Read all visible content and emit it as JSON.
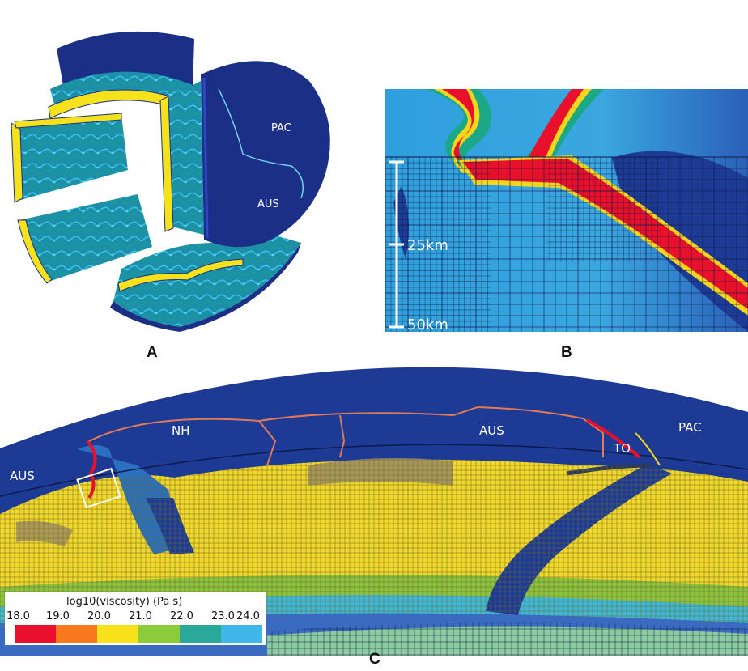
{
  "panels": {
    "a": {
      "letter": "A",
      "plate_labels": [
        "PAC",
        "AUS"
      ]
    },
    "b": {
      "letter": "B",
      "scale_ticks": [
        "25km",
        "50km"
      ]
    },
    "c": {
      "letter": "C",
      "plate_labels": [
        "AUS",
        "NH",
        "AUS",
        "TO",
        "PAC"
      ]
    }
  },
  "colorbar": {
    "title": "log10(viscosity) (Pa s)",
    "ticks": [
      "18.0",
      "19.0",
      "20.0",
      "21.0",
      "22.0",
      "23.0",
      "24.0"
    ],
    "colors": [
      "#e8102a",
      "#f7791c",
      "#f9e21a",
      "#8ccb3a",
      "#2aa89a",
      "#3fb7e8",
      "#1f3a8c"
    ]
  }
}
